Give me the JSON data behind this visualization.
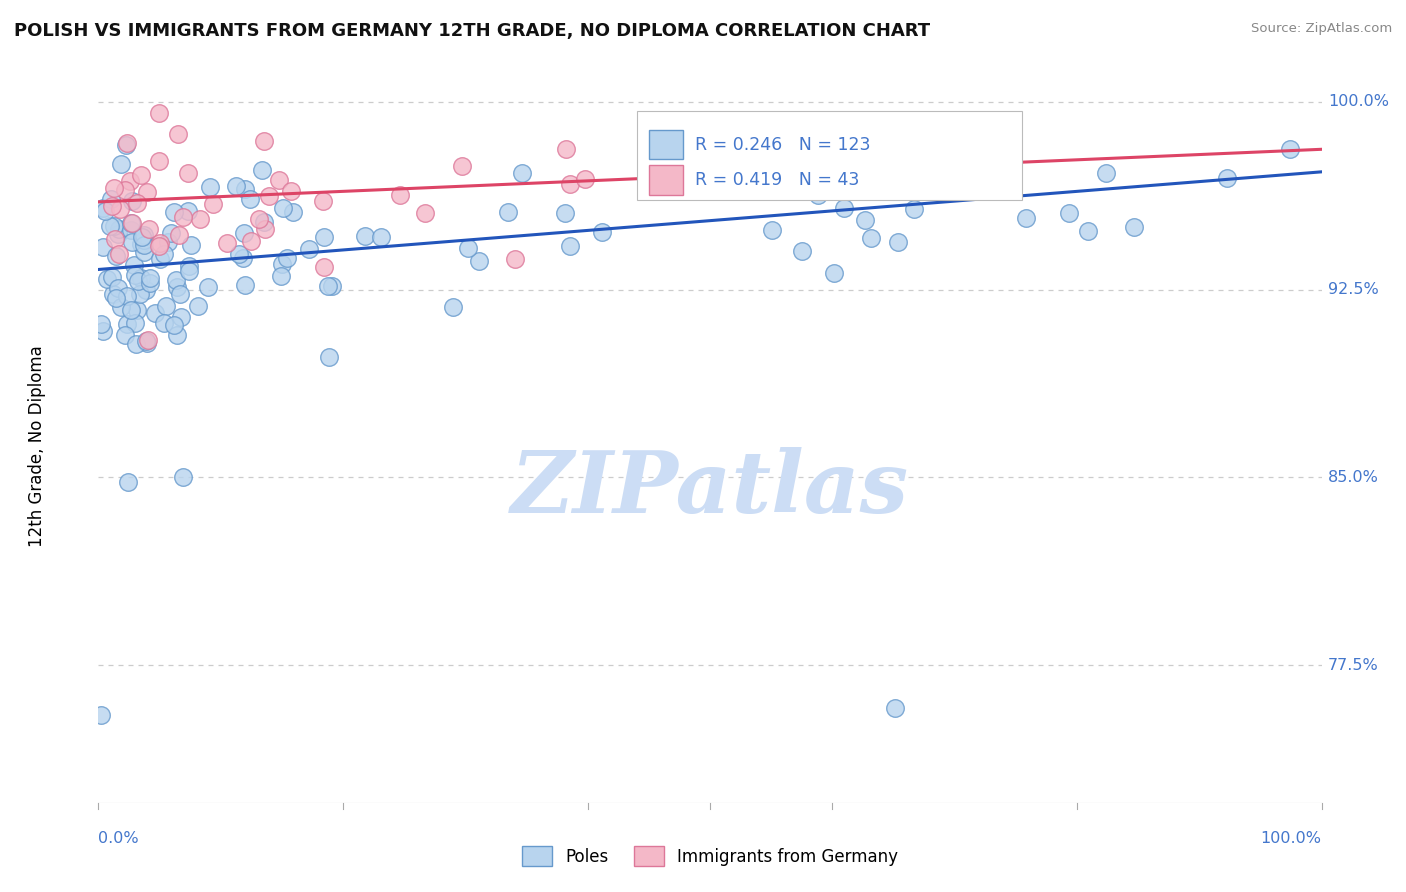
{
  "title": "POLISH VS IMMIGRANTS FROM GERMANY 12TH GRADE, NO DIPLOMA CORRELATION CHART",
  "source": "Source: ZipAtlas.com",
  "ylabel": "12th Grade, No Diploma",
  "r_poles": 0.246,
  "n_poles": 123,
  "r_immigrants": 0.419,
  "n_immigrants": 43,
  "poles_color": "#b8d4ee",
  "poles_edge_color": "#6699cc",
  "immigrants_color": "#f4b8c8",
  "immigrants_edge_color": "#dd7799",
  "trend_poles_color": "#2255bb",
  "trend_immigrants_color": "#dd4466",
  "watermark_text": "ZIPatlas",
  "watermark_color": "#ccddf5",
  "ytick_color": "#4477cc",
  "xtick_color": "#4477cc",
  "grid_color": "#cccccc",
  "ylim_min": 0.72,
  "ylim_max": 1.005,
  "xlim_min": 0.0,
  "xlim_max": 1.0,
  "ytick_vals": [
    1.0,
    0.925,
    0.85,
    0.775
  ],
  "ytick_labels": [
    "100.0%",
    "92.5%",
    "85.0%",
    "77.5%"
  ],
  "poles_trend_x0": 0.0,
  "poles_trend_y0": 0.933,
  "poles_trend_x1": 1.0,
  "poles_trend_y1": 0.972,
  "imm_trend_x0": 0.0,
  "imm_trend_y0": 0.96,
  "imm_trend_x1": 1.0,
  "imm_trend_y1": 0.981
}
